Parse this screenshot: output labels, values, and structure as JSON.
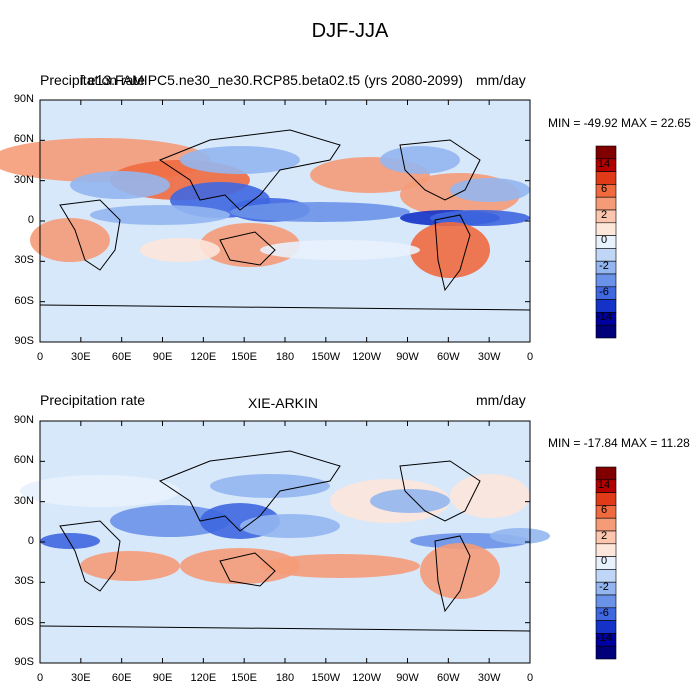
{
  "title": "DJF-JJA",
  "panels": [
    {
      "left_label": "Precipitation rate",
      "center_label": "f.e13.FAMIPC5.ne30_ne30.RCP85.beta02.t5 (yrs 2080-2099)",
      "right_label": "mm/day",
      "stats": "MIN = -49.92 MAX =  22.65"
    },
    {
      "left_label": "Precipitation rate",
      "center_label": "XIE-ARKIN",
      "right_label": "mm/day",
      "stats": "MIN = -17.84 MAX =  11.28"
    }
  ],
  "lat_labels": [
    "90N",
    "60N",
    "30N",
    "0",
    "30S",
    "60S",
    "90S"
  ],
  "lon_labels": [
    "0",
    "30E",
    "60E",
    "90E",
    "120E",
    "150E",
    "180",
    "150W",
    "120W",
    "90W",
    "60W",
    "30W",
    "0"
  ],
  "colorbar_labels": [
    "14",
    "6",
    "2",
    "0",
    "-2",
    "-6",
    "-14"
  ],
  "colorbar_colors": [
    "#800000",
    "#b50000",
    "#e03a18",
    "#f06a40",
    "#f59b78",
    "#fbc6ad",
    "#fde6da",
    "#e8f2fd",
    "#c0d6f7",
    "#94b6f0",
    "#6a92e8",
    "#3f67e0",
    "#1432c8",
    "#0000a0",
    "#00007a"
  ],
  "ocean_color": "#d8e8fb"
}
